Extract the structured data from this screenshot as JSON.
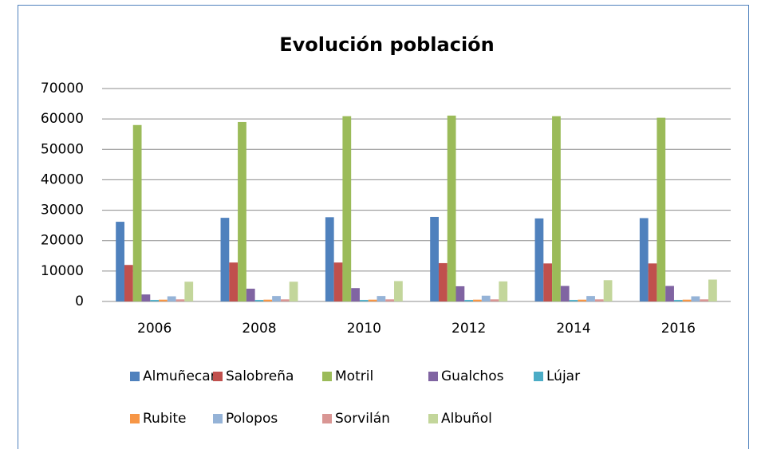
{
  "chart_data": {
    "type": "bar",
    "title": "Evolución población",
    "categories": [
      "2006",
      "2008",
      "2010",
      "2012",
      "2014",
      "2016"
    ],
    "series": [
      {
        "name": "Almuñecar",
        "color": "#4f81bd",
        "values": [
          26200,
          27500,
          27700,
          27800,
          27300,
          27400
        ]
      },
      {
        "name": "Salobreña",
        "color": "#c0504d",
        "values": [
          12000,
          12800,
          12800,
          12600,
          12500,
          12500
        ]
      },
      {
        "name": "Motril",
        "color": "#9bbb59",
        "values": [
          58000,
          59000,
          60900,
          61100,
          60900,
          60400
        ]
      },
      {
        "name": "Gualchos",
        "color": "#8064a2",
        "values": [
          2300,
          4200,
          4400,
          5000,
          5100,
          5100
        ]
      },
      {
        "name": "Lújar",
        "color": "#4bacc6",
        "values": [
          500,
          500,
          500,
          500,
          500,
          500
        ]
      },
      {
        "name": "Rubite",
        "color": "#f79646",
        "values": [
          600,
          600,
          600,
          600,
          600,
          600
        ]
      },
      {
        "name": "Polopos",
        "color": "#95b3d7",
        "values": [
          1700,
          1800,
          1800,
          1900,
          1800,
          1700
        ]
      },
      {
        "name": "Sorvilán",
        "color": "#d99694",
        "values": [
          700,
          700,
          700,
          700,
          700,
          700
        ]
      },
      {
        "name": "Albuñol",
        "color": "#c3d69b",
        "values": [
          6500,
          6500,
          6700,
          6600,
          7000,
          7200
        ]
      }
    ],
    "ylim": [
      0,
      70000
    ],
    "yticks": [
      0,
      10000,
      20000,
      30000,
      40000,
      50000,
      60000,
      70000
    ],
    "grid": true,
    "legend": "bottom"
  }
}
